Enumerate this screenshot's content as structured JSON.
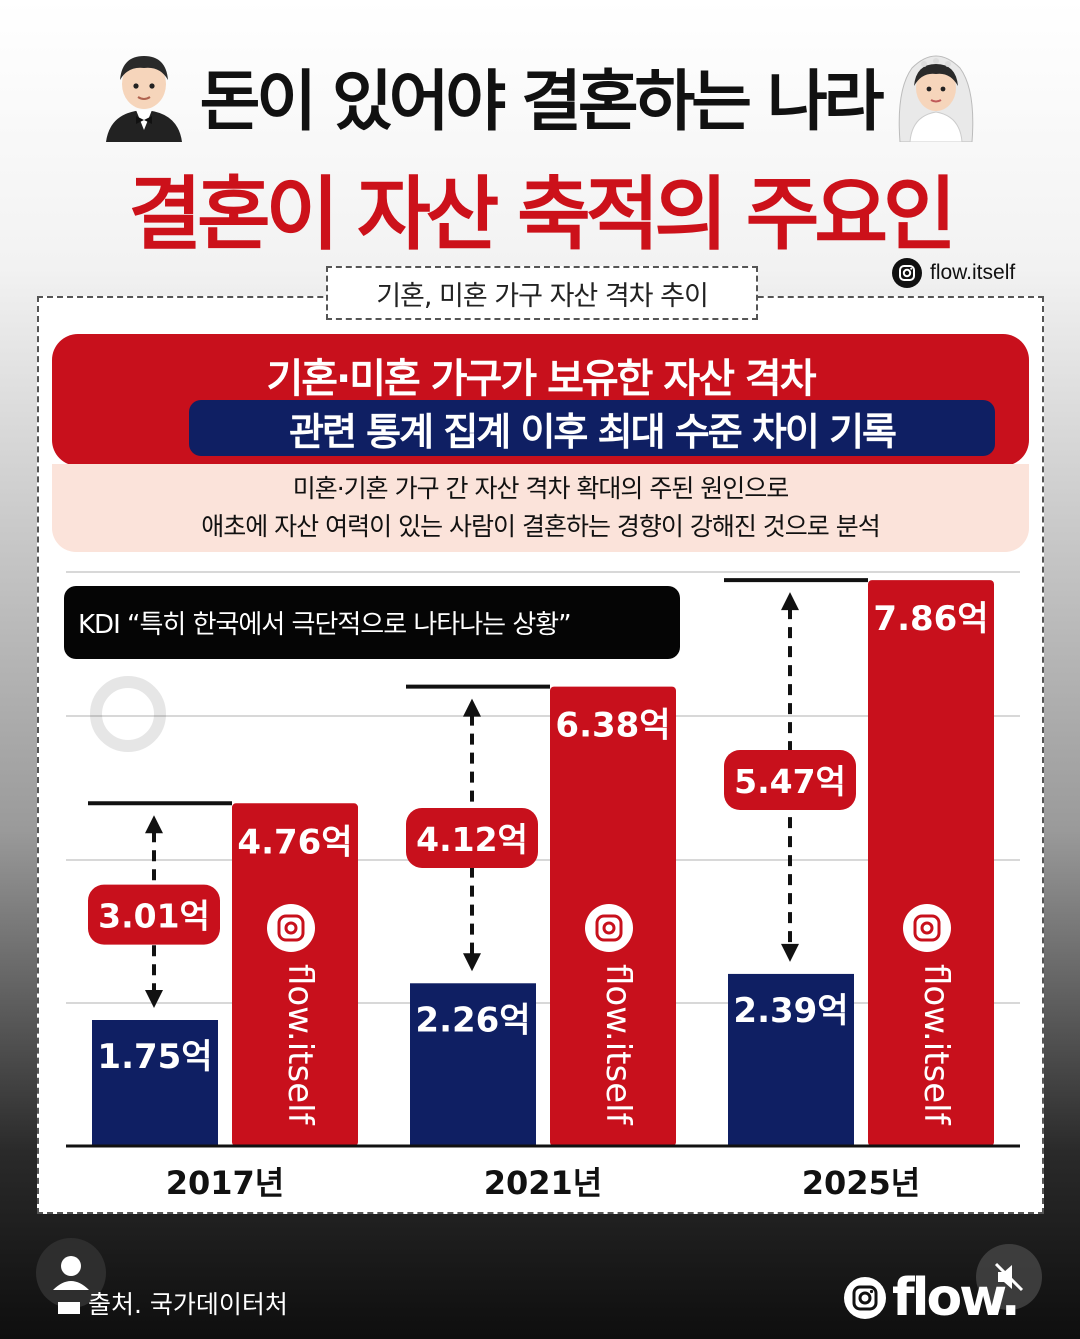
{
  "header": {
    "title": "돈이 있어야 결혼하는 나라",
    "headline": "결혼이 자산 축적의 주요인",
    "instagram_handle": "flow.itself"
  },
  "panel": {
    "subtitle": "기혼, 미혼 가구 자산 격차 추이",
    "banner_line1": "기혼·미혼 가구가 보유한 자산 격차",
    "banner_line2": "관련 통계 집계 이후 최대 수준 차이 기록",
    "note_line1": "미혼·기혼 가구 간 자산 격차 확대의 주된 원인으로",
    "note_line2": "애초에 자산 여력이 있는 사람이 결혼하는 경향이 강해진 것으로 분석",
    "quote": "KDI “특히 한국에서 극단적으로 나타나는 상황”"
  },
  "chart_data": {
    "type": "bar",
    "categories": [
      "2017년",
      "2021년",
      "2025년"
    ],
    "unit": "억",
    "series": [
      {
        "values": [
          1.75,
          2.26,
          2.39
        ],
        "labels": [
          "1.75억",
          "2.26억",
          "2.39억"
        ],
        "color": "#0f1f63"
      },
      {
        "values": [
          4.76,
          6.38,
          7.86
        ],
        "labels": [
          "4.76억",
          "6.38억",
          "7.86억"
        ],
        "color": "#c8101c",
        "watermark": "flow.itself"
      }
    ],
    "gaps": [
      3.01,
      4.12,
      5.47
    ],
    "gap_labels": [
      "3.01억",
      "4.12억",
      "5.47억"
    ],
    "grid": true
  },
  "footer": {
    "source": "출처. 국가데이터처",
    "brand": "flow."
  }
}
